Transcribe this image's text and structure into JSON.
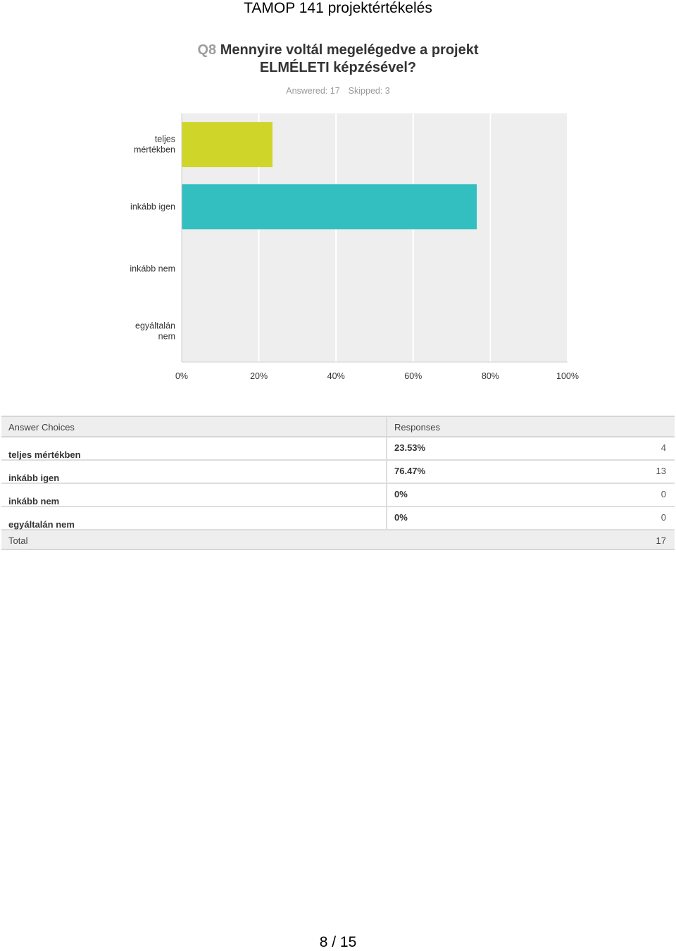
{
  "document": {
    "title": "TAMOP 141 projektértékelés",
    "page_number": "8 / 15"
  },
  "question": {
    "number": "Q8",
    "text_line1": "Mennyire voltál megelégedve a projekt",
    "text_line2": "ELMÉLETI képzésével?",
    "answered": "Answered: 17",
    "skipped": "Skipped: 3"
  },
  "chart_data": {
    "type": "bar",
    "orientation": "horizontal",
    "categories": [
      "teljes mértékben",
      "inkább igen",
      "inkább nem",
      "egyáltalán nem"
    ],
    "category_label_lines": [
      [
        "teljes",
        "mértékben"
      ],
      [
        "inkább igen"
      ],
      [
        "inkább nem"
      ],
      [
        "egyáltalán",
        "nem"
      ]
    ],
    "values": [
      23.53,
      76.47,
      0,
      0
    ],
    "bar_colors": [
      "#d0d52a",
      "#33bec0",
      "#d0d52a",
      "#d0d52a"
    ],
    "xlim": [
      0,
      100
    ],
    "x_ticks": [
      0,
      20,
      40,
      60,
      80,
      100
    ],
    "x_tick_labels": [
      "0%",
      "20%",
      "40%",
      "60%",
      "80%",
      "100%"
    ],
    "grid": true,
    "plot_background": "#eeeeee",
    "grid_color": "#ffffff"
  },
  "table": {
    "header_choices": "Answer Choices",
    "header_responses": "Responses",
    "rows": [
      {
        "choice": "teljes mértékben",
        "percent": "23.53%",
        "count": "4"
      },
      {
        "choice": "inkább igen",
        "percent": "76.47%",
        "count": "13"
      },
      {
        "choice": "inkább nem",
        "percent": "0%",
        "count": "0"
      },
      {
        "choice": "egyáltalán nem",
        "percent": "0%",
        "count": "0"
      }
    ],
    "total_label": "Total",
    "total_count": "17"
  }
}
